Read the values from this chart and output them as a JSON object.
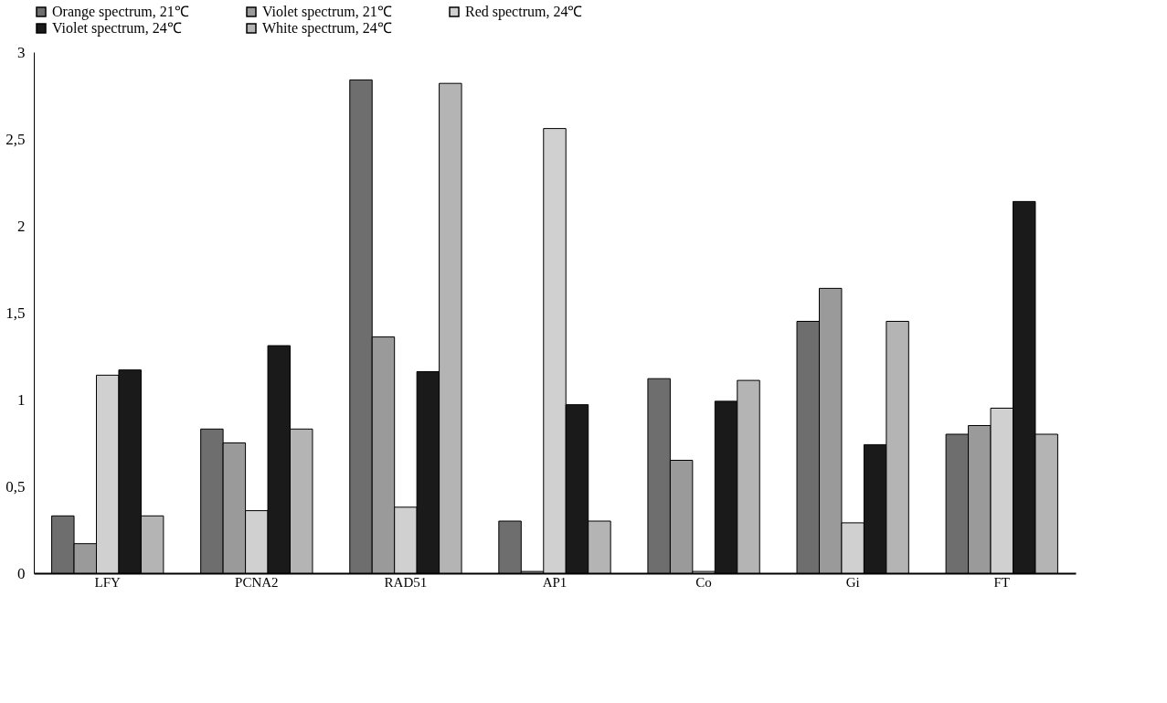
{
  "chart_data": {
    "type": "bar",
    "categories": [
      "LFY",
      "PCNA2",
      "RAD51",
      "AP1",
      "Co",
      "Gi",
      "FT"
    ],
    "series": [
      {
        "name": "Orange spectrum, 21℃",
        "color": "#6e6e6e",
        "values": [
          0.33,
          0.83,
          2.84,
          0.3,
          1.12,
          1.45,
          0.8
        ]
      },
      {
        "name": "Violet spectrum, 21℃",
        "color": "#9a9a9a",
        "values": [
          0.17,
          0.75,
          1.36,
          0.01,
          0.65,
          1.64,
          0.85
        ]
      },
      {
        "name": "Red spectrum, 24℃",
        "color": "#d0d0d0",
        "values": [
          1.14,
          0.36,
          0.38,
          2.56,
          0.01,
          0.29,
          0.95
        ]
      },
      {
        "name": "Violet spectrum, 24℃",
        "color": "#1a1a1a",
        "values": [
          1.17,
          1.31,
          1.16,
          0.97,
          0.99,
          0.74,
          2.14
        ]
      },
      {
        "name": "White spectrum, 24℃",
        "color": "#b4b4b4",
        "values": [
          0.33,
          0.83,
          2.82,
          0.3,
          1.11,
          1.45,
          0.8
        ]
      }
    ],
    "ylim": [
      0,
      3
    ],
    "yticks": [
      0,
      {
        "value": 0.5,
        "label": "0,5"
      },
      1,
      {
        "value": 1.5,
        "label": "1,5"
      },
      2,
      {
        "value": 2.5,
        "label": "2,5"
      },
      3
    ],
    "grid": false,
    "legend": "top"
  }
}
